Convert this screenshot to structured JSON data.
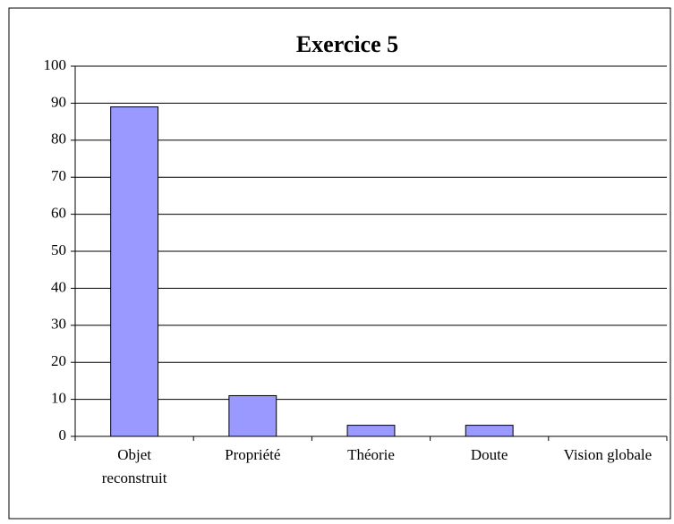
{
  "chart_data": {
    "type": "bar",
    "title": "Exercice 5",
    "categories": [
      "Objet reconstruit",
      "Propriété",
      "Théorie",
      "Doute",
      "Vision globale"
    ],
    "values": [
      89,
      11,
      3,
      3,
      0
    ],
    "color": "#9999ff",
    "ylim": [
      0,
      100
    ],
    "yticks": [
      0,
      10,
      20,
      30,
      40,
      50,
      60,
      70,
      80,
      90,
      100
    ],
    "grid": true
  }
}
